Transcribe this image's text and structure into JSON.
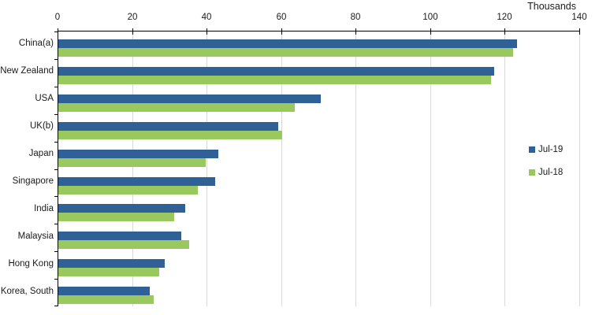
{
  "chart": {
    "units_label": "Thousands",
    "background": "#ffffff",
    "axis_color": "#000000",
    "gridline_color": "#d9d9d9",
    "text_color": "#1a1a1a"
  },
  "chart_data": {
    "type": "bar",
    "orientation": "horizontal",
    "title": "",
    "xlabel": "Thousands",
    "ylabel": "",
    "categories": [
      "China(a)",
      "New Zealand",
      "USA",
      "UK(b)",
      "Japan",
      "Singapore",
      "India",
      "Malaysia",
      "Hong Kong",
      "Korea, South"
    ],
    "series": [
      {
        "name": "Jul-19",
        "color": "#2f6096",
        "values": [
          123,
          117,
          70.5,
          59,
          43,
          42,
          34,
          33,
          28.5,
          24.5
        ]
      },
      {
        "name": "Jul-18",
        "color": "#98c85e",
        "values": [
          122,
          116,
          63.5,
          60,
          39.5,
          37.5,
          31,
          35,
          27,
          25.5
        ]
      }
    ],
    "xlim": [
      0,
      140
    ],
    "xticks": [
      0,
      20,
      40,
      60,
      80,
      100,
      120,
      140
    ],
    "grid": true,
    "legend_position": "right-middle"
  }
}
